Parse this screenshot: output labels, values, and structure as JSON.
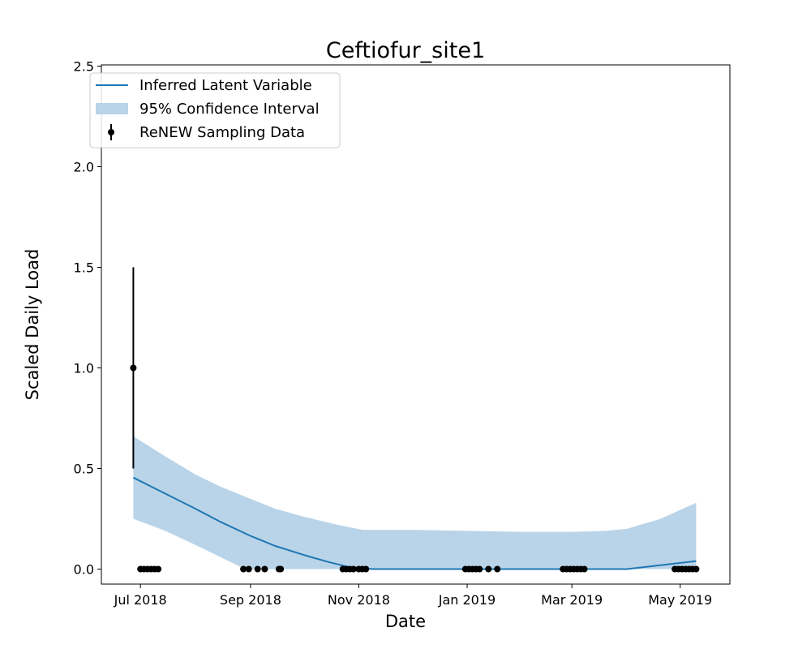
{
  "chart_data": {
    "type": "line",
    "title": "Ceftiofur_site1",
    "xlabel": "Date",
    "ylabel": "Scaled Daily Load",
    "ylim": [
      0,
      2.5
    ],
    "xlim": [
      "2018-06-09",
      "2019-05-29"
    ],
    "x_ticks": [
      {
        "date": "2018-07-01",
        "label": "Jul 2018"
      },
      {
        "date": "2018-09-01",
        "label": "Sep 2018"
      },
      {
        "date": "2018-11-01",
        "label": "Nov 2018"
      },
      {
        "date": "2019-01-01",
        "label": "Jan 2019"
      },
      {
        "date": "2019-03-01",
        "label": "Mar 2019"
      },
      {
        "date": "2019-05-01",
        "label": "May 2019"
      }
    ],
    "y_ticks": [
      0.0,
      0.5,
      1.0,
      1.5,
      2.0,
      2.5
    ],
    "y_tick_labels": [
      "0.0",
      "0.5",
      "1.0",
      "1.5",
      "2.0",
      "2.5"
    ],
    "grid": false,
    "legend_position": "top-left",
    "colors": {
      "line": "#1f77b4",
      "band": "#b9d4e8",
      "points": "#000000"
    },
    "legend": [
      {
        "label": "Inferred Latent Variable",
        "kind": "line"
      },
      {
        "label": "95% Confidence Interval",
        "kind": "band"
      },
      {
        "label": "ReNEW Sampling Data",
        "kind": "errorpoint"
      }
    ],
    "series": [
      {
        "name": "Inferred Latent Variable",
        "kind": "line",
        "points": [
          {
            "x": "2018-06-27",
            "y": 0.455
          },
          {
            "x": "2018-07-15",
            "y": 0.375
          },
          {
            "x": "2018-08-01",
            "y": 0.3
          },
          {
            "x": "2018-08-15",
            "y": 0.235
          },
          {
            "x": "2018-09-01",
            "y": 0.165
          },
          {
            "x": "2018-09-15",
            "y": 0.115
          },
          {
            "x": "2018-10-01",
            "y": 0.07
          },
          {
            "x": "2018-10-15",
            "y": 0.035
          },
          {
            "x": "2018-10-29",
            "y": 0.005
          },
          {
            "x": "2018-11-10",
            "y": 0.0
          },
          {
            "x": "2019-04-01",
            "y": 0.0
          },
          {
            "x": "2019-05-10",
            "y": 0.04
          }
        ]
      },
      {
        "name": "95% Confidence Interval",
        "kind": "band",
        "points": [
          {
            "x": "2018-06-27",
            "lower": 0.25,
            "upper": 0.66
          },
          {
            "x": "2018-07-15",
            "lower": 0.19,
            "upper": 0.56
          },
          {
            "x": "2018-08-01",
            "lower": 0.12,
            "upper": 0.47
          },
          {
            "x": "2018-08-15",
            "lower": 0.06,
            "upper": 0.41
          },
          {
            "x": "2018-08-29",
            "lower": 0.0,
            "upper": 0.36
          },
          {
            "x": "2018-09-15",
            "lower": 0.0,
            "upper": 0.3
          },
          {
            "x": "2018-10-01",
            "lower": 0.0,
            "upper": 0.26
          },
          {
            "x": "2018-10-20",
            "lower": 0.0,
            "upper": 0.22
          },
          {
            "x": "2018-11-03",
            "lower": 0.0,
            "upper": 0.195
          },
          {
            "x": "2018-12-01",
            "lower": 0.0,
            "upper": 0.195
          },
          {
            "x": "2019-01-01",
            "lower": 0.0,
            "upper": 0.19
          },
          {
            "x": "2019-02-01",
            "lower": 0.0,
            "upper": 0.185
          },
          {
            "x": "2019-03-01",
            "lower": 0.0,
            "upper": 0.185
          },
          {
            "x": "2019-03-20",
            "lower": 0.0,
            "upper": 0.19
          },
          {
            "x": "2019-04-01",
            "lower": 0.0,
            "upper": 0.2
          },
          {
            "x": "2019-04-20",
            "lower": 0.0,
            "upper": 0.25
          },
          {
            "x": "2019-05-10",
            "lower": 0.0,
            "upper": 0.33
          }
        ]
      },
      {
        "name": "ReNEW Sampling Data",
        "kind": "errorpoints",
        "points": [
          {
            "x": "2018-06-27",
            "y": 1.0,
            "yerr_low": 0.5,
            "yerr_high": 1.5
          },
          {
            "x": "2018-07-01",
            "y": 0.0
          },
          {
            "x": "2018-07-03",
            "y": 0.0
          },
          {
            "x": "2018-07-05",
            "y": 0.0
          },
          {
            "x": "2018-07-07",
            "y": 0.0
          },
          {
            "x": "2018-07-09",
            "y": 0.0
          },
          {
            "x": "2018-07-11",
            "y": 0.0
          },
          {
            "x": "2018-08-28",
            "y": 0.0
          },
          {
            "x": "2018-08-31",
            "y": 0.0
          },
          {
            "x": "2018-09-05",
            "y": 0.0
          },
          {
            "x": "2018-09-09",
            "y": 0.0
          },
          {
            "x": "2018-09-17",
            "y": 0.0
          },
          {
            "x": "2018-09-18",
            "y": 0.0
          },
          {
            "x": "2018-10-23",
            "y": 0.0
          },
          {
            "x": "2018-10-25",
            "y": 0.0
          },
          {
            "x": "2018-10-27",
            "y": 0.0
          },
          {
            "x": "2018-10-29",
            "y": 0.0
          },
          {
            "x": "2018-11-01",
            "y": 0.0
          },
          {
            "x": "2018-11-03",
            "y": 0.0
          },
          {
            "x": "2018-11-05",
            "y": 0.0
          },
          {
            "x": "2018-12-31",
            "y": 0.0
          },
          {
            "x": "2019-01-02",
            "y": 0.0
          },
          {
            "x": "2019-01-04",
            "y": 0.0
          },
          {
            "x": "2019-01-06",
            "y": 0.0
          },
          {
            "x": "2019-01-08",
            "y": 0.0
          },
          {
            "x": "2019-01-13",
            "y": 0.0
          },
          {
            "x": "2019-01-18",
            "y": 0.0
          },
          {
            "x": "2019-02-24",
            "y": 0.0
          },
          {
            "x": "2019-02-26",
            "y": 0.0
          },
          {
            "x": "2019-02-28",
            "y": 0.0
          },
          {
            "x": "2019-03-02",
            "y": 0.0
          },
          {
            "x": "2019-03-04",
            "y": 0.0
          },
          {
            "x": "2019-03-06",
            "y": 0.0
          },
          {
            "x": "2019-03-08",
            "y": 0.0
          },
          {
            "x": "2019-04-28",
            "y": 0.0
          },
          {
            "x": "2019-04-30",
            "y": 0.0
          },
          {
            "x": "2019-05-02",
            "y": 0.0
          },
          {
            "x": "2019-05-04",
            "y": 0.0
          },
          {
            "x": "2019-05-06",
            "y": 0.0
          },
          {
            "x": "2019-05-08",
            "y": 0.0
          },
          {
            "x": "2019-05-10",
            "y": 0.0
          }
        ]
      }
    ]
  }
}
